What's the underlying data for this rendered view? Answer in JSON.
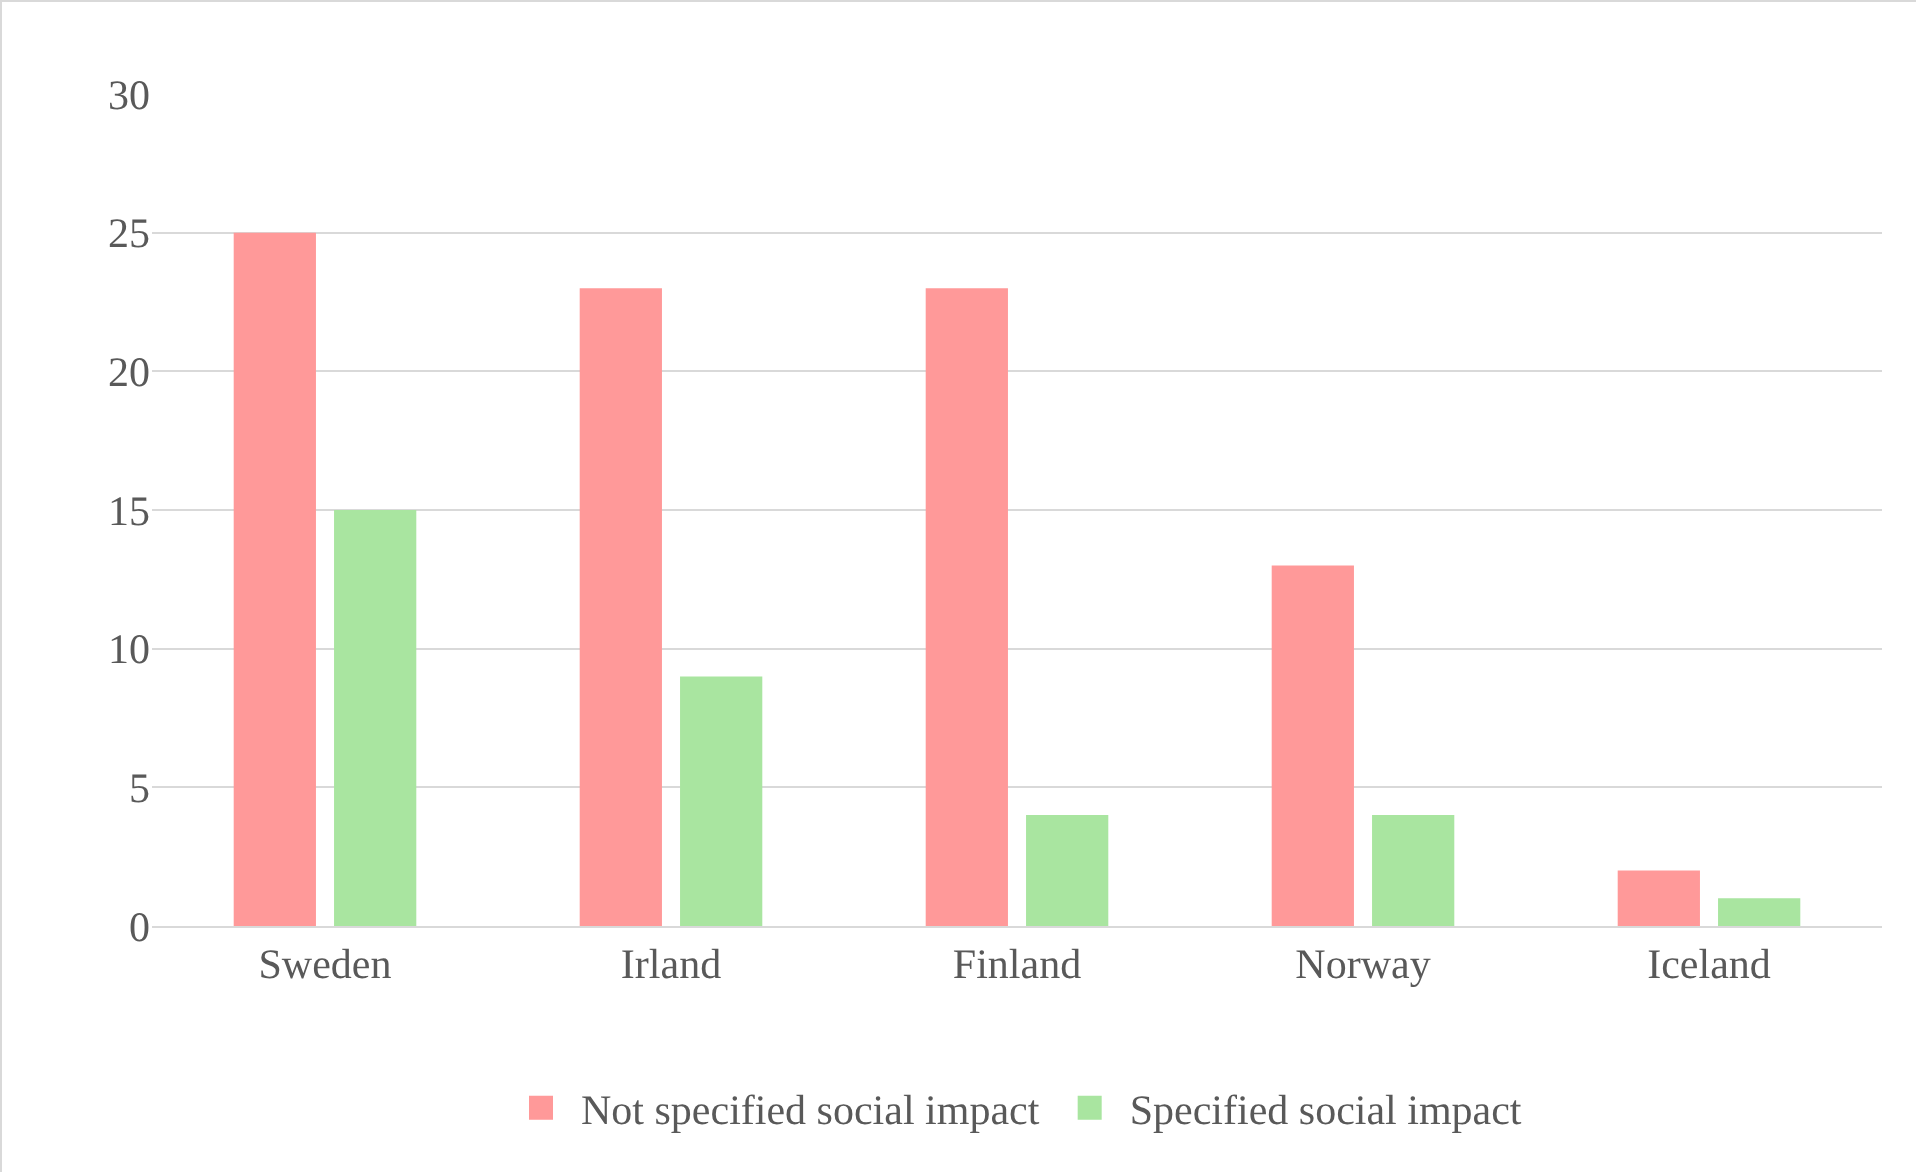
{
  "chart_data": {
    "type": "bar",
    "categories": [
      "Sweden",
      "Irland",
      "Finland",
      "Norway",
      "Iceland"
    ],
    "series": [
      {
        "name": "Not specified social impact",
        "color": "#ff9999",
        "values": [
          25,
          23,
          23,
          13,
          2
        ]
      },
      {
        "name": "Specified social impact",
        "color": "#a9e5a0",
        "values": [
          15,
          9,
          4,
          4,
          1
        ]
      }
    ],
    "ylim": [
      0,
      30
    ],
    "yticks": [
      0,
      5,
      10,
      15,
      20,
      25,
      30
    ],
    "grid": "y",
    "legend": "bottom"
  }
}
